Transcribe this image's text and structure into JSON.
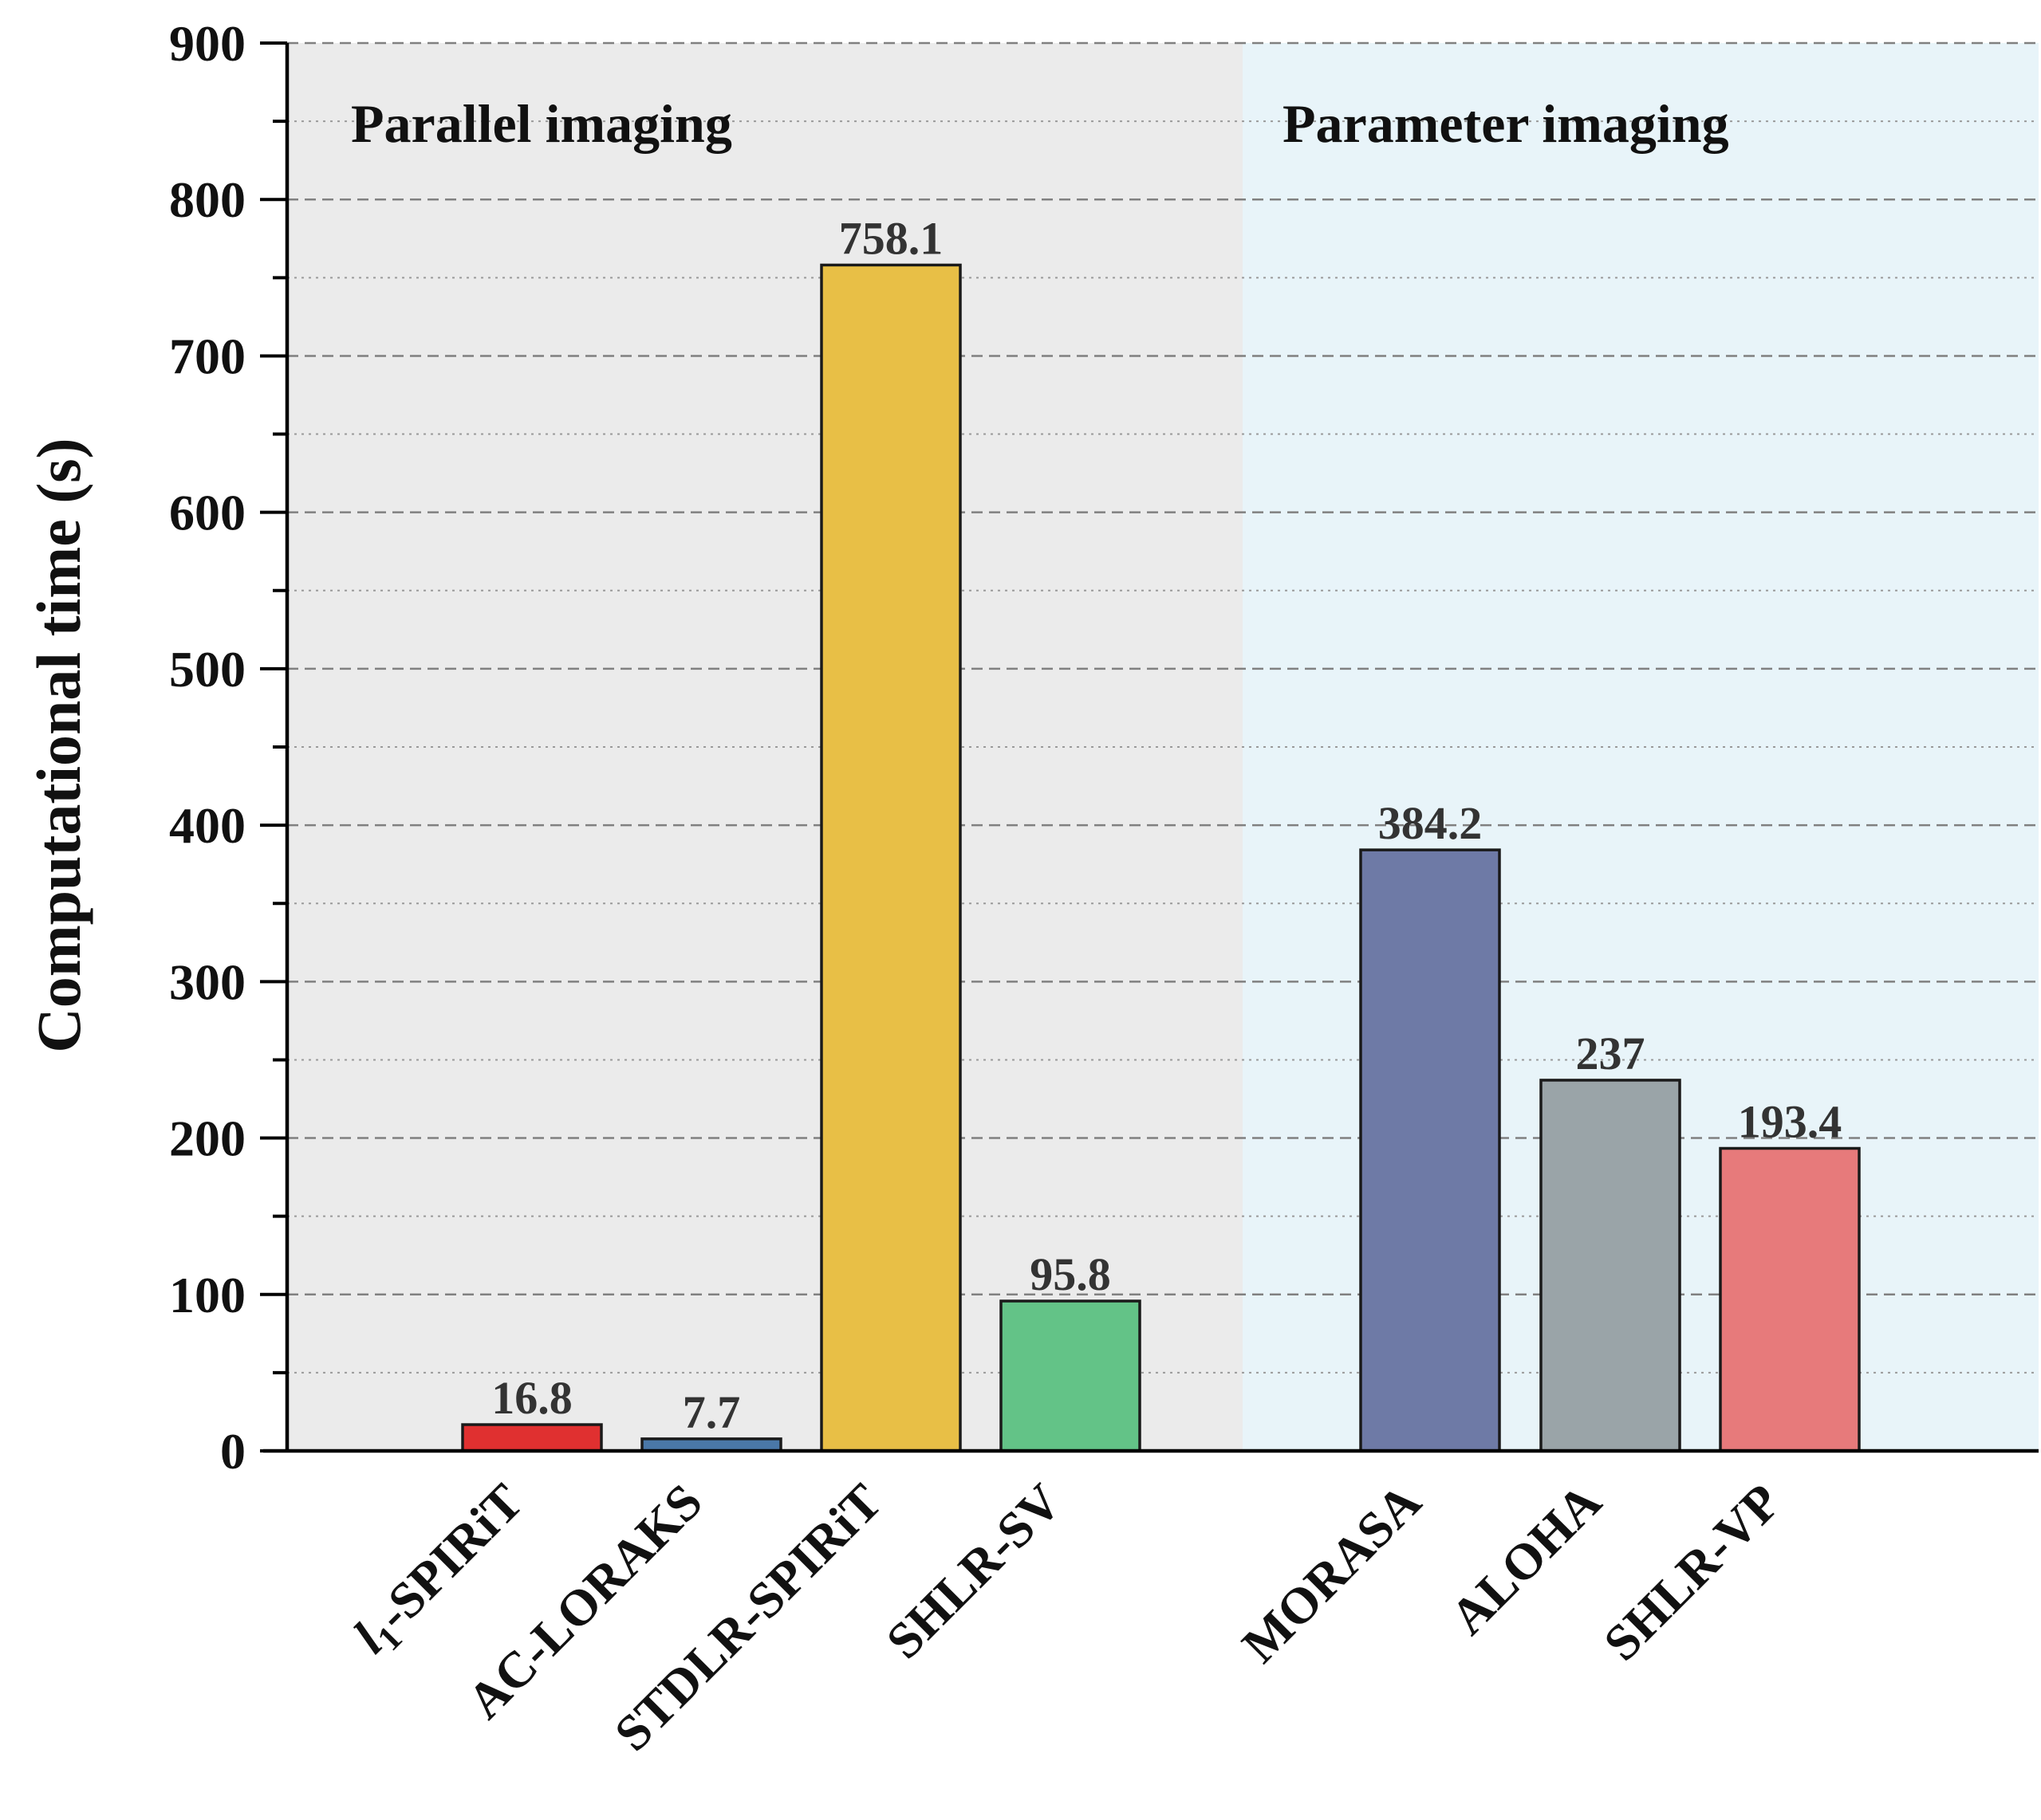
{
  "chart_data": {
    "type": "bar",
    "title": "",
    "xlabel": "",
    "ylabel": "Computational time (s)",
    "ylim": [
      0,
      900
    ],
    "yticks": [
      0,
      100,
      200,
      300,
      400,
      500,
      600,
      700,
      800,
      900
    ],
    "grid": true,
    "categories": [
      "l1-SPIRiT",
      "AC-LORAKS",
      "STDLR-SPIRiT",
      "SHLR-SV",
      "MORASA",
      "ALOHA",
      "SHLR-VP"
    ],
    "values": [
      16.8,
      7.7,
      758.1,
      95.8,
      384.2,
      237,
      193.4
    ],
    "value_labels": [
      "16.8",
      "7.7",
      "758.1",
      "95.8",
      "384.2",
      "237",
      "193.4"
    ],
    "bar_colors": [
      "#e03030",
      "#4a78a8",
      "#e8bf46",
      "#63c387",
      "#6e7aa6",
      "#9aa4a8",
      "#e77a7b"
    ],
    "groups": [
      {
        "label": "Parallel imaging",
        "categories": [
          "l1-SPIRiT",
          "AC-LORAKS",
          "STDLR-SPIRiT",
          "SHLR-SV"
        ],
        "background": "#ebebeb"
      },
      {
        "label": "Parameter imaging",
        "categories": [
          "MORASA",
          "ALOHA",
          "SHLR-VP"
        ],
        "background": "#e8f4f9"
      }
    ]
  }
}
